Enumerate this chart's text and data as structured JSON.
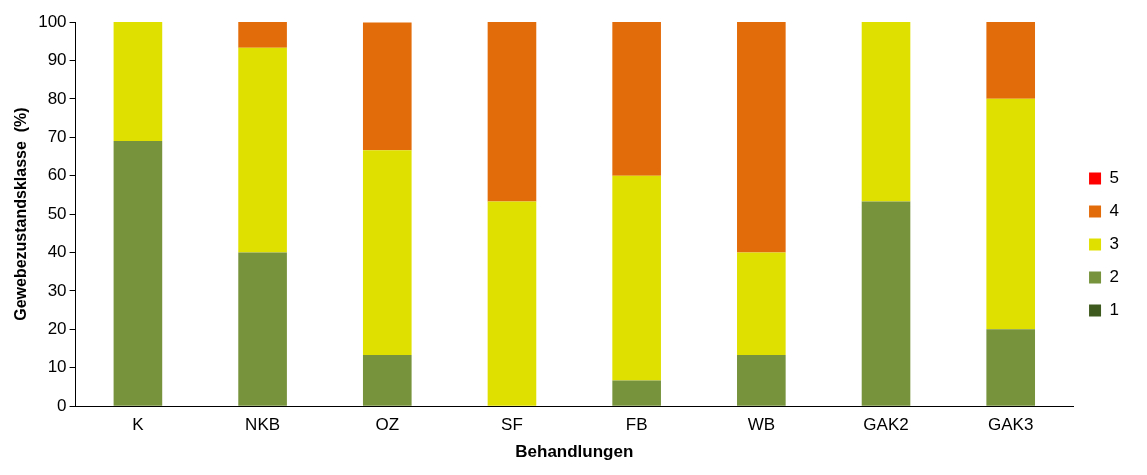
{
  "chart_data": {
    "type": "bar",
    "stacked": true,
    "xlabel": "Behandlungen",
    "ylabel": "Gewebezustandsklasse  (%)",
    "categories": [
      "K",
      "NKB",
      "OZ",
      "SF",
      "FB",
      "WB",
      "GAK2",
      "GAK3"
    ],
    "series": [
      {
        "name": "1",
        "color": "#3f5a1e",
        "values": [
          0,
          0,
          0,
          0,
          0,
          0,
          0,
          0
        ]
      },
      {
        "name": "2",
        "color": "#77933c",
        "values": [
          69,
          40,
          13.3,
          0,
          6.7,
          13.3,
          53.3,
          20
        ]
      },
      {
        "name": "3",
        "color": "#e0e000",
        "values": [
          31,
          53.3,
          53.3,
          53.3,
          53.3,
          26.7,
          46.7,
          60
        ]
      },
      {
        "name": "4",
        "color": "#e36c0a",
        "values": [
          0,
          6.7,
          33.3,
          46.7,
          40,
          60,
          0,
          20
        ]
      },
      {
        "name": "5",
        "color": "#ff0000",
        "values": [
          0,
          0,
          0,
          0,
          0,
          0,
          0,
          0
        ]
      }
    ],
    "ylim": [
      0,
      100
    ],
    "yticks": [
      0,
      10,
      20,
      30,
      40,
      50,
      60,
      70,
      80,
      90,
      100
    ],
    "grid": false,
    "legend": "right"
  }
}
